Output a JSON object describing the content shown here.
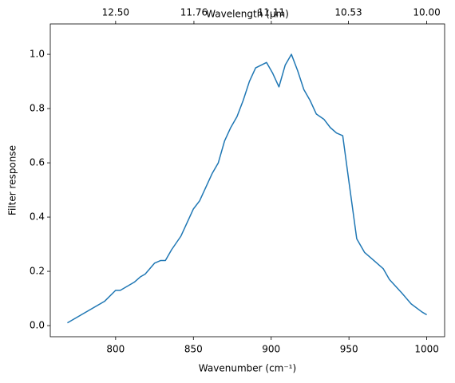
{
  "chart_data": {
    "type": "line",
    "xlabel": "Wavenumber (cm⁻¹)",
    "ylabel": "Filter response",
    "x2label": "Wavelength (μm)",
    "x2_scale": "reciprocal",
    "x": [
      769,
      793,
      800,
      803,
      812,
      816,
      819,
      825,
      829,
      832,
      836,
      842,
      846,
      850,
      854,
      858,
      862,
      866,
      870,
      874,
      878,
      882,
      886,
      890,
      897,
      901,
      905,
      909,
      913,
      917,
      921,
      925,
      929,
      934,
      938,
      942,
      946,
      950,
      955,
      960,
      966,
      972,
      976,
      984,
      990,
      997,
      1000
    ],
    "series": [
      {
        "color": "#1f77b4",
        "values": [
          0.01,
          0.09,
          0.13,
          0.13,
          0.16,
          0.18,
          0.19,
          0.23,
          0.24,
          0.24,
          0.28,
          0.33,
          0.38,
          0.43,
          0.46,
          0.51,
          0.56,
          0.6,
          0.68,
          0.73,
          0.77,
          0.83,
          0.9,
          0.95,
          0.97,
          0.93,
          0.88,
          0.96,
          1.0,
          0.94,
          0.87,
          0.83,
          0.78,
          0.76,
          0.73,
          0.71,
          0.7,
          0.53,
          0.32,
          0.27,
          0.24,
          0.21,
          0.17,
          0.12,
          0.08,
          0.05,
          0.04
        ]
      }
    ],
    "xlim": [
      758,
      1011.5
    ],
    "ylim": [
      -0.041,
      1.112
    ],
    "xticks": [
      800,
      850,
      900,
      950,
      1000
    ],
    "yticks": [
      {
        "value": 0,
        "label": "0.0"
      },
      {
        "value": 0.2,
        "label": "0.2"
      },
      {
        "value": 0.4,
        "label": "0.4"
      },
      {
        "value": 0.6,
        "label": "0.6"
      },
      {
        "value": 0.8,
        "label": "0.8"
      },
      {
        "value": 1,
        "label": "1.0"
      }
    ],
    "x2ticks": [
      {
        "value": 12.5,
        "label": "12.50"
      },
      {
        "value": 11.76,
        "label": "11.76"
      },
      {
        "value": 11.11,
        "label": "11.11"
      },
      {
        "value": 10.53,
        "label": "10.53"
      },
      {
        "value": 10,
        "label": "10.00"
      }
    ],
    "grid": false
  }
}
